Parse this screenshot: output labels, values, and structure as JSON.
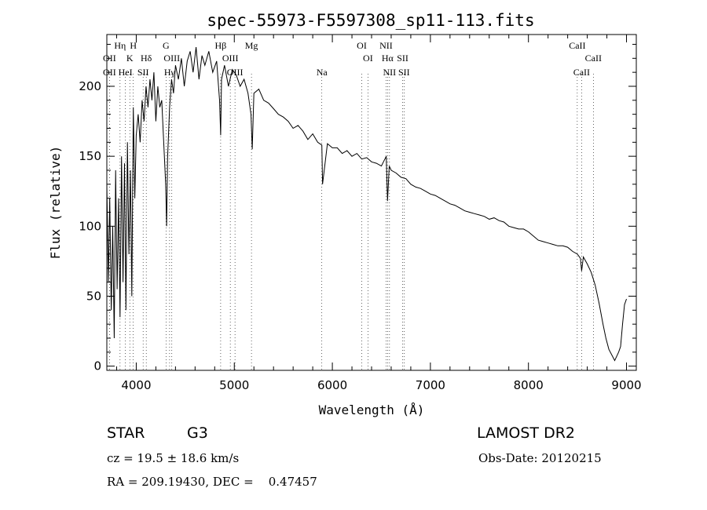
{
  "chart_data": {
    "type": "line",
    "title": "spec-55973-F5597308_sp11-113.fits",
    "xlabel": "Wavelength (Å)",
    "ylabel": "Flux (relative)",
    "xlim": [
      3700,
      9100
    ],
    "ylim": [
      -3,
      237
    ],
    "xticks": [
      4000,
      5000,
      6000,
      7000,
      8000,
      9000
    ],
    "yticks": [
      0,
      50,
      100,
      150,
      200
    ],
    "grid": false,
    "series": [
      {
        "x": [
          3700,
          3715,
          3730,
          3745,
          3760,
          3775,
          3790,
          3805,
          3820,
          3835,
          3850,
          3865,
          3880,
          3895,
          3910,
          3925,
          3940,
          3955,
          3970,
          3985,
          4000,
          4020,
          4040,
          4060,
          4080,
          4100,
          4120,
          4140,
          4160,
          4180,
          4200,
          4220,
          4240,
          4260,
          4280,
          4300,
          4310,
          4320,
          4340,
          4360,
          4380,
          4400,
          4430,
          4460,
          4490,
          4520,
          4550,
          4580,
          4610,
          4640,
          4670,
          4700,
          4740,
          4780,
          4820,
          4850,
          4861,
          4870,
          4900,
          4940,
          4980,
          5020,
          5060,
          5100,
          5140,
          5170,
          5183,
          5200,
          5250,
          5300,
          5350,
          5400,
          5450,
          5500,
          5550,
          5600,
          5650,
          5700,
          5750,
          5800,
          5850,
          5893,
          5900,
          5950,
          6000,
          6050,
          6100,
          6150,
          6200,
          6250,
          6300,
          6350,
          6400,
          6450,
          6500,
          6550,
          6563,
          6580,
          6600,
          6650,
          6700,
          6750,
          6800,
          6850,
          6900,
          6950,
          7000,
          7050,
          7100,
          7150,
          7200,
          7250,
          7300,
          7350,
          7400,
          7450,
          7500,
          7550,
          7600,
          7650,
          7700,
          7750,
          7800,
          7850,
          7900,
          7950,
          8000,
          8050,
          8100,
          8150,
          8200,
          8250,
          8300,
          8350,
          8400,
          8450,
          8500,
          8530,
          8542,
          8560,
          8600,
          8640,
          8680,
          8720,
          8760,
          8790,
          8820,
          8850,
          8880,
          8900,
          8920,
          8940,
          8960,
          8980,
          9000
        ],
        "y": [
          130,
          60,
          120,
          40,
          100,
          20,
          140,
          55,
          120,
          35,
          150,
          60,
          145,
          40,
          160,
          80,
          140,
          50,
          185,
          120,
          165,
          180,
          160,
          190,
          175,
          200,
          185,
          205,
          190,
          210,
          175,
          200,
          185,
          190,
          160,
          130,
          100,
          150,
          185,
          205,
          195,
          215,
          205,
          220,
          200,
          218,
          225,
          210,
          228,
          205,
          222,
          215,
          225,
          210,
          218,
          190,
          165,
          205,
          215,
          200,
          212,
          208,
          200,
          205,
          195,
          180,
          155,
          195,
          198,
          190,
          188,
          184,
          180,
          178,
          175,
          170,
          172,
          168,
          162,
          166,
          160,
          158,
          130,
          159,
          156,
          156,
          152,
          154,
          150,
          152,
          148,
          149,
          146,
          145,
          143,
          150,
          118,
          143,
          140,
          138,
          135,
          134,
          130,
          128,
          127,
          125,
          123,
          122,
          120,
          118,
          116,
          115,
          113,
          111,
          110,
          109,
          108,
          107,
          105,
          106,
          104,
          103,
          100,
          99,
          98,
          98,
          96,
          93,
          90,
          89,
          88,
          87,
          86,
          86,
          85,
          82,
          80,
          77,
          68,
          78,
          73,
          67,
          58,
          45,
          30,
          20,
          12,
          8,
          4,
          7,
          10,
          14,
          30,
          44,
          48
        ]
      }
    ],
    "annotations": [
      {
        "text": "Hη",
        "x": 3835,
        "row": 1
      },
      {
        "text": "H",
        "x": 3970,
        "row": 1
      },
      {
        "text": "G",
        "x": 4304,
        "row": 1
      },
      {
        "text": "Hβ",
        "x": 4861,
        "row": 1
      },
      {
        "text": "Mg",
        "x": 5175,
        "row": 1
      },
      {
        "text": "OI",
        "x": 6300,
        "row": 1
      },
      {
        "text": "NII",
        "x": 6548,
        "row": 1
      },
      {
        "text": "CaII",
        "x": 8498,
        "row": 1
      },
      {
        "text": "OII",
        "x": 3727,
        "row": 2
      },
      {
        "text": "K",
        "x": 3934,
        "row": 2
      },
      {
        "text": "Hδ",
        "x": 4102,
        "row": 2
      },
      {
        "text": "OIII",
        "x": 4363,
        "row": 2
      },
      {
        "text": "OIII",
        "x": 4959,
        "row": 2
      },
      {
        "text": "OI",
        "x": 6363,
        "row": 2
      },
      {
        "text": "Hα",
        "x": 6563,
        "row": 2
      },
      {
        "text": "SII",
        "x": 6717,
        "row": 2
      },
      {
        "text": "CaII",
        "x": 8662,
        "row": 2
      },
      {
        "text": "OII",
        "x": 3727,
        "row": 3
      },
      {
        "text": "HeI",
        "x": 3889,
        "row": 3
      },
      {
        "text": "SII",
        "x": 4070,
        "row": 3
      },
      {
        "text": "Hγ",
        "x": 4340,
        "row": 3
      },
      {
        "text": "OIII",
        "x": 5007,
        "row": 3
      },
      {
        "text": "Na",
        "x": 5893,
        "row": 3
      },
      {
        "text": "NII",
        "x": 6583,
        "row": 3
      },
      {
        "text": "SII",
        "x": 6731,
        "row": 3
      },
      {
        "text": "CaII",
        "x": 8542,
        "row": 3
      }
    ],
    "line_markers": [
      3727,
      3835,
      3889,
      3934,
      3970,
      4070,
      4102,
      4304,
      4340,
      4363,
      4861,
      4959,
      5007,
      5175,
      5893,
      6300,
      6363,
      6548,
      6563,
      6583,
      6717,
      6731,
      8498,
      8542,
      8662
    ]
  },
  "info": {
    "object_class": "STAR",
    "subclass": "G3",
    "survey": "LAMOST DR2",
    "redshift_line": "cz = 19.5 ± 18.6 km/s",
    "obs_date_line": "Obs-Date: 20120215",
    "coords_line": "RA = 209.19430, DEC =    0.47457"
  }
}
